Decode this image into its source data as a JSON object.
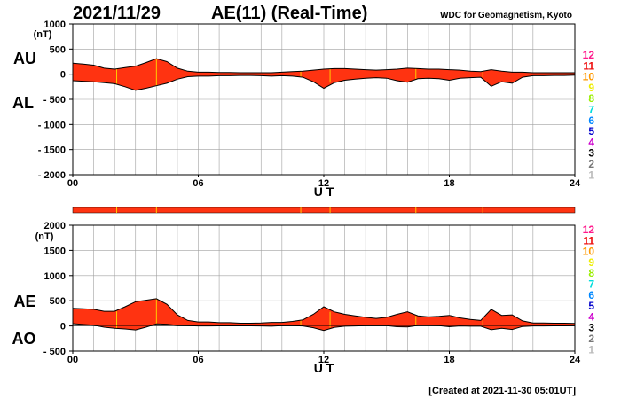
{
  "header": {
    "date": "2021/11/29",
    "title": "AE(11) (Real-Time)",
    "source": "WDC for Geomagnetism, Kyoto"
  },
  "footer": {
    "created": "[Created at 2021-11-30 05:01UT]"
  },
  "legend": {
    "levels": [
      {
        "label": "12",
        "color": "#ff1a8c"
      },
      {
        "label": "11",
        "color": "#ee1111"
      },
      {
        "label": "10",
        "color": "#ff9900"
      },
      {
        "label": "9",
        "color": "#eeee00"
      },
      {
        "label": "8",
        "color": "#99ee00"
      },
      {
        "label": "7",
        "color": "#00dddd"
      },
      {
        "label": "6",
        "color": "#0088ff"
      },
      {
        "label": "5",
        "color": "#0000cc"
      },
      {
        "label": "4",
        "color": "#cc00cc"
      },
      {
        "label": "3",
        "color": "#000000"
      },
      {
        "label": "2",
        "color": "#777777"
      },
      {
        "label": "1",
        "color": "#bbbbbb"
      }
    ]
  },
  "colors": {
    "fill": "#ff3311",
    "station_mark": "#ffcc00",
    "grid": "#a0a0a0"
  },
  "chart_data": [
    {
      "type": "area",
      "panel": "AU/AL",
      "upper_label": "AU",
      "lower_label": "AL",
      "unit_label": "(nT)",
      "xlabel": "U T",
      "xlim": [
        0,
        24
      ],
      "xticks": [
        0,
        6,
        12,
        18,
        24
      ],
      "xtick_labels": [
        "00",
        "06",
        "12",
        "18",
        "24"
      ],
      "ylim": [
        -2000,
        1000
      ],
      "yticks": [
        1000,
        500,
        0,
        -500,
        -1000,
        -1500,
        -2000
      ],
      "ytick_labels": [
        "1000",
        "500",
        "0",
        "- 500",
        "- 1000",
        "- 1500",
        "- 2000"
      ],
      "x": [
        0,
        0.5,
        1,
        1.5,
        2,
        2.5,
        3,
        3.5,
        4,
        4.5,
        5,
        5.5,
        6,
        6.5,
        7,
        7.5,
        8,
        8.5,
        9,
        9.5,
        10,
        10.5,
        11,
        11.5,
        12,
        12.5,
        13,
        13.5,
        14,
        14.5,
        15,
        15.5,
        16,
        16.5,
        17,
        17.5,
        18,
        18.5,
        19,
        19.5,
        20,
        20.5,
        21,
        21.5,
        22,
        22.5,
        23,
        23.5,
        24
      ],
      "series": [
        {
          "name": "AU",
          "values": [
            220,
            200,
            180,
            120,
            100,
            130,
            160,
            230,
            310,
            250,
            120,
            60,
            40,
            40,
            35,
            35,
            30,
            30,
            30,
            30,
            40,
            50,
            60,
            80,
            100,
            110,
            110,
            100,
            90,
            80,
            90,
            100,
            120,
            110,
            100,
            100,
            90,
            80,
            60,
            50,
            90,
            60,
            40,
            40,
            30,
            30,
            30,
            30,
            30
          ]
        },
        {
          "name": "AL",
          "values": [
            -130,
            -140,
            -150,
            -170,
            -190,
            -250,
            -320,
            -280,
            -230,
            -180,
            -100,
            -50,
            -40,
            -40,
            -30,
            -30,
            -25,
            -25,
            -30,
            -40,
            -30,
            -40,
            -60,
            -150,
            -280,
            -170,
            -120,
            -100,
            -80,
            -70,
            -80,
            -130,
            -160,
            -90,
            -80,
            -90,
            -120,
            -80,
            -70,
            -60,
            -240,
            -150,
            -180,
            -60,
            -30,
            -30,
            -25,
            -25,
            -20
          ]
        }
      ]
    },
    {
      "type": "area",
      "panel": "AE/AO",
      "upper_label": "AE",
      "lower_label": "AO",
      "unit_label": "(nT)",
      "xlabel": "U T",
      "xlim": [
        0,
        24
      ],
      "xticks": [
        0,
        6,
        12,
        18,
        24
      ],
      "xtick_labels": [
        "00",
        "06",
        "12",
        "18",
        "24"
      ],
      "ylim": [
        -500,
        2000
      ],
      "yticks": [
        2000,
        1500,
        1000,
        500,
        0,
        -500
      ],
      "ytick_labels": [
        "2000",
        "1500",
        "1000",
        "500",
        "0",
        "- 500"
      ],
      "x": [
        0,
        0.5,
        1,
        1.5,
        2,
        2.5,
        3,
        3.5,
        4,
        4.5,
        5,
        5.5,
        6,
        6.5,
        7,
        7.5,
        8,
        8.5,
        9,
        9.5,
        10,
        10.5,
        11,
        11.5,
        12,
        12.5,
        13,
        13.5,
        14,
        14.5,
        15,
        15.5,
        16,
        16.5,
        17,
        17.5,
        18,
        18.5,
        19,
        19.5,
        20,
        20.5,
        21,
        21.5,
        22,
        22.5,
        23,
        23.5,
        24
      ],
      "series": [
        {
          "name": "AE",
          "values": [
            350,
            340,
            330,
            290,
            290,
            380,
            480,
            510,
            540,
            430,
            220,
            110,
            80,
            80,
            65,
            65,
            55,
            55,
            60,
            70,
            70,
            90,
            120,
            230,
            380,
            280,
            230,
            200,
            170,
            150,
            170,
            230,
            280,
            200,
            180,
            190,
            210,
            160,
            130,
            110,
            330,
            210,
            220,
            100,
            60,
            60,
            55,
            55,
            50
          ]
        },
        {
          "name": "AO",
          "values": [
            45,
            30,
            15,
            -25,
            -45,
            -60,
            -80,
            -25,
            40,
            35,
            10,
            5,
            0,
            0,
            2,
            2,
            2,
            2,
            0,
            -5,
            5,
            5,
            0,
            -35,
            -90,
            -30,
            -5,
            0,
            5,
            5,
            5,
            -15,
            -20,
            10,
            10,
            5,
            -15,
            0,
            -5,
            -5,
            -75,
            -45,
            -70,
            -10,
            0,
            0,
            2,
            2,
            5
          ]
        }
      ]
    }
  ]
}
